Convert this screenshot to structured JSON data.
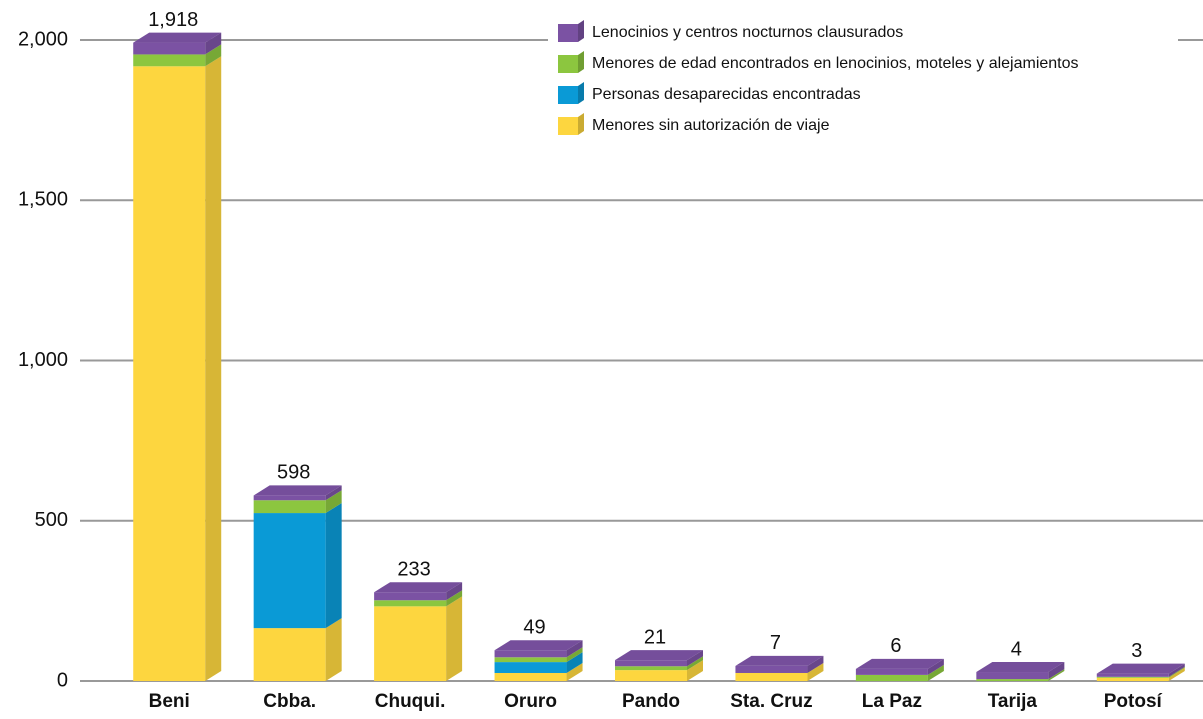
{
  "chart_data": {
    "type": "bar",
    "stacked": true,
    "categories": [
      "Beni",
      "Cbba.",
      "Chuqui.",
      "Oruro",
      "Pando",
      "Sta. Cruz",
      "La Paz",
      "Tarija",
      "Potosí"
    ],
    "series": [
      {
        "name": "Menores sin autorización de viaje",
        "color": "#fdd63f",
        "values": [
          1918,
          165,
          233,
          25,
          34,
          25,
          0,
          0,
          10
        ]
      },
      {
        "name": "Personas desaparecidas encontradas",
        "color": "#0a9ad6",
        "values": [
          0,
          359,
          0,
          34,
          0,
          0,
          0,
          0,
          0
        ]
      },
      {
        "name": "Menores de edad encontrados en lenocinios, moteles y alejamientos",
        "color": "#8cc63f",
        "values": [
          37,
          40,
          19,
          15,
          12,
          0,
          19,
          6,
          3
        ]
      },
      {
        "name": "Lenocinios y centros nocturnos clausurados",
        "color": "#7b52a3",
        "values": [
          37,
          15,
          25,
          22,
          19,
          22,
          19,
          22,
          10
        ]
      }
    ],
    "bar_labels": [
      "1,918",
      "598",
      "233",
      "49",
      "21",
      "7",
      "6",
      "4",
      "3"
    ],
    "ylim": [
      0,
      2000
    ],
    "yticks": [
      0,
      {
        "value": 500,
        "label": "500"
      },
      {
        "value": 1000,
        "label": "1,000"
      },
      {
        "value": 1500,
        "label": "1,500"
      },
      {
        "value": 2000,
        "label": "2,000"
      }
    ],
    "grid": true,
    "legend": "top-right"
  }
}
